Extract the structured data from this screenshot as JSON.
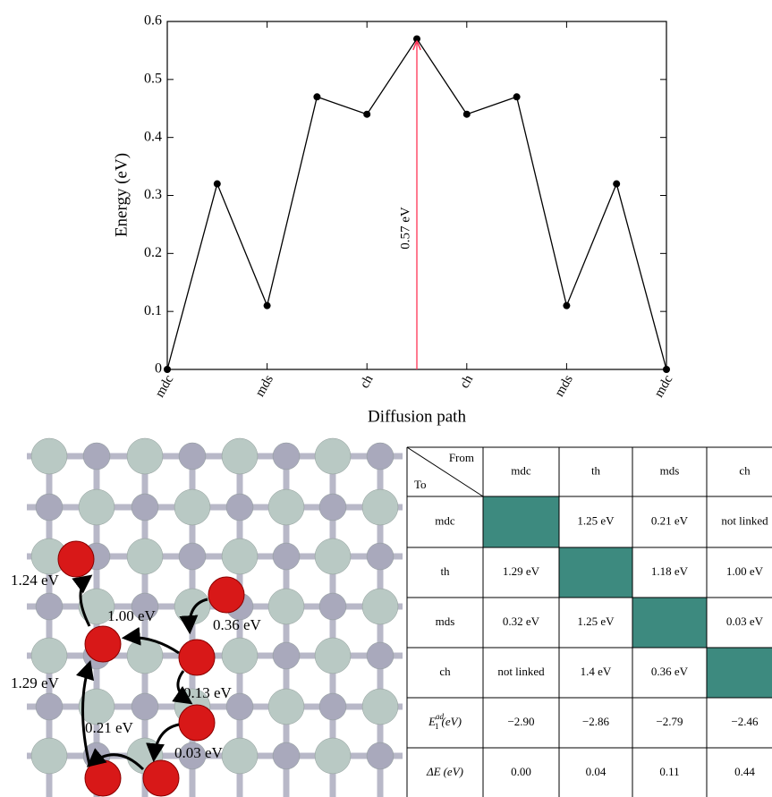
{
  "chart_data": {
    "type": "line",
    "y_label": "Energy (eV)",
    "x_label": "Diffusion path",
    "categories": [
      "mdc",
      null,
      "mds",
      null,
      "ch",
      null,
      "ch",
      null,
      "mds",
      null,
      "mdc"
    ],
    "values": [
      0,
      0.32,
      0.11,
      0.47,
      0.44,
      0.57,
      0.44,
      0.47,
      0.11,
      0.32,
      0
    ],
    "color": "#000000",
    "ylim": [
      0,
      0.6
    ],
    "yticks": [
      0,
      0.1,
      0.2,
      0.3,
      0.4,
      0.5,
      0.6
    ],
    "annotation": {
      "text": "0.57 eV",
      "color": "#ff3355"
    }
  },
  "diagram": {
    "labels": [
      "1.24 eV",
      "1.00 eV",
      "0.36 eV",
      "1.29 eV",
      "0.13 eV",
      "0.21 eV",
      "0.03 eV"
    ]
  },
  "table": {
    "corner": {
      "from": "From",
      "to": "To"
    },
    "columns": [
      "mdc",
      "th",
      "mds",
      "ch"
    ],
    "rows": [
      {
        "label": "mdc",
        "cells": [
          null,
          "1.25 eV",
          "0.21 eV",
          "not linked"
        ]
      },
      {
        "label": "th",
        "cells": [
          "1.29 eV",
          null,
          "1.18 eV",
          "1.00 eV"
        ]
      },
      {
        "label": "mds",
        "cells": [
          "0.32 eV",
          "1.25 eV",
          null,
          "0.03 eV"
        ]
      },
      {
        "label": "ch",
        "cells": [
          "not linked",
          "1.4 eV",
          "0.36 eV",
          null
        ]
      },
      {
        "label": {
          "base": "E",
          "sup": "ad",
          "sub": "1",
          "unit": "(eV)"
        },
        "cells": [
          "−2.90",
          "−2.86",
          "−2.79",
          "−2.46"
        ]
      },
      {
        "label": {
          "base": "ΔE",
          "unit": "(eV)"
        },
        "cells": [
          "0.00",
          "0.04",
          "0.11",
          "0.44"
        ]
      }
    ],
    "diagonal_color": "#3d8a7f"
  }
}
